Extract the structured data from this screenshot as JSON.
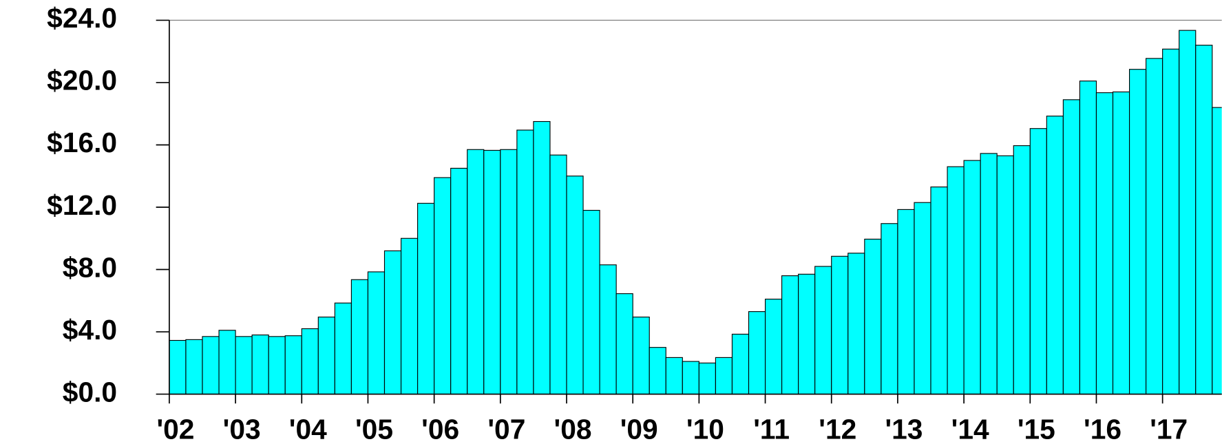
{
  "chart_data": {
    "type": "bar",
    "categories": [
      "'02",
      null,
      null,
      null,
      "'03",
      null,
      null,
      null,
      "'04",
      null,
      null,
      null,
      "'05",
      null,
      null,
      null,
      "'06",
      null,
      null,
      null,
      "'07",
      null,
      null,
      null,
      "'08",
      null,
      null,
      null,
      "'09",
      null,
      null,
      null,
      "'10",
      null,
      null,
      null,
      "'11",
      null,
      null,
      null,
      "'12",
      null,
      null,
      null,
      "'13",
      null,
      null,
      null,
      "'14",
      null,
      null,
      null,
      "'15",
      null,
      null,
      null,
      "'16",
      null,
      null,
      null,
      "'17",
      null,
      null,
      null
    ],
    "values": [
      3.45,
      3.5,
      3.7,
      4.1,
      3.7,
      3.8,
      3.7,
      3.75,
      4.2,
      4.95,
      5.85,
      7.35,
      7.85,
      9.2,
      10.0,
      12.25,
      13.9,
      14.5,
      15.7,
      15.65,
      15.7,
      16.95,
      17.5,
      15.35,
      14.0,
      11.8,
      8.3,
      6.45,
      4.95,
      3.0,
      2.35,
      2.1,
      2.0,
      2.35,
      3.85,
      5.3,
      6.1,
      7.6,
      7.7,
      8.2,
      8.85,
      9.05,
      9.95,
      10.95,
      11.85,
      12.3,
      13.3,
      14.6,
      15.0,
      15.45,
      15.3,
      15.95,
      17.05,
      17.85,
      18.9,
      20.1,
      19.35,
      19.4,
      20.85,
      21.55,
      22.15,
      23.35,
      22.4,
      18.4
    ],
    "color": "#00ffff",
    "ylim": [
      0,
      24
    ],
    "yticks": [
      {
        "value": 0,
        "label": "$0.0"
      },
      {
        "value": 4,
        "label": "$4.0"
      },
      {
        "value": 8,
        "label": "$8.0"
      },
      {
        "value": 12,
        "label": "$12.0"
      },
      {
        "value": 16,
        "label": "$16.0"
      },
      {
        "value": 20,
        "label": "$20.0"
      },
      {
        "value": 24,
        "label": "$24.0"
      }
    ]
  }
}
